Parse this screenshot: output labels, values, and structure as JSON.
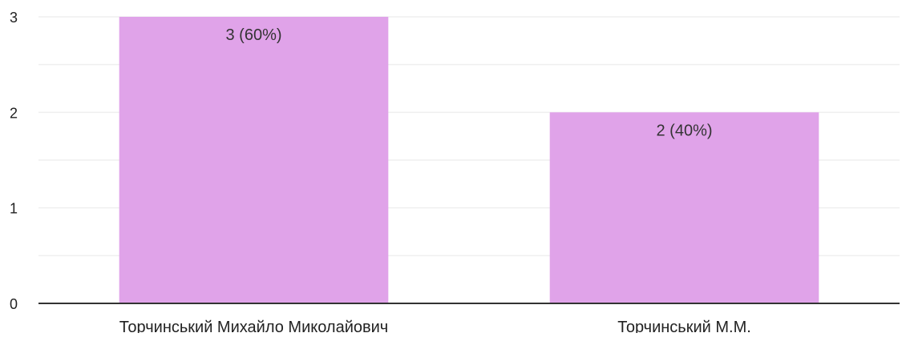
{
  "chart_data": {
    "type": "bar",
    "categories": [
      "Торчинський Михайло Миколайович",
      "Торчинський М.М."
    ],
    "values": [
      3,
      2
    ],
    "data_labels": [
      "3 (60%)",
      "2 (40%)"
    ],
    "y_tick_labels": [
      "0",
      "1",
      "2",
      "3"
    ],
    "ylim": [
      0,
      3
    ],
    "grid": true,
    "title": "",
    "xlabel": "",
    "ylabel": "",
    "bar_color": "#e0a3e9",
    "gridline_color": "#efefef",
    "axis_color": "#333333"
  }
}
